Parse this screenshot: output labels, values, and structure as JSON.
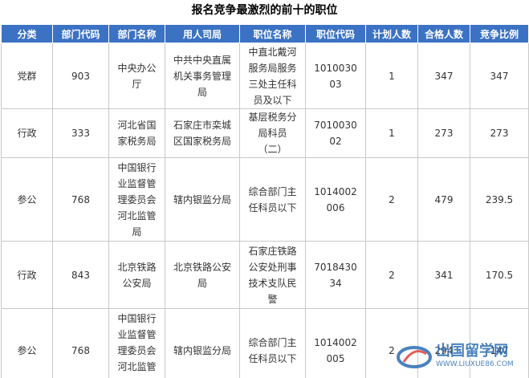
{
  "title": "报名竞争最激烈的前十的职位",
  "table": {
    "header": [
      "分类",
      "部门代码",
      "部门名称",
      "用人司局",
      "职位名称",
      "职位代码",
      "计划人数",
      "合格人数",
      "竞争比例"
    ],
    "rows": [
      [
        "党群",
        "903",
        "中央办公厅",
        "中共中央直属机关事务管理局",
        "中直北戴河服务局服务三处主任科员及以下",
        "101003003",
        "1",
        "347",
        "347"
      ],
      [
        "行政",
        "333",
        "河北省国家税务局",
        "石家庄市栾城区国家税务局",
        "基层税务分局科员（二）",
        "701003002",
        "1",
        "273",
        "273"
      ],
      [
        "参公",
        "768",
        "中国银行业监督管理委员会河北监管局",
        "辖内银监分局",
        "综合部门主任科员以下",
        "1014002006",
        "2",
        "479",
        "239.5"
      ],
      [
        "行政",
        "843",
        "北京铁路公安局",
        "北京铁路公安局",
        "石家庄铁路公安处刑事技术支队民警",
        "701843034",
        "2",
        "341",
        "170.5"
      ],
      [
        "参公",
        "768",
        "中国银行业监督管理委员会河北监管局",
        "辖内银监分局",
        "综合部门主任科员以下",
        "1014002005",
        "2",
        "294",
        "147"
      ]
    ]
  },
  "watermark": {
    "name": "出国留学网",
    "url": "WWW.LIUXUE86.COM"
  }
}
